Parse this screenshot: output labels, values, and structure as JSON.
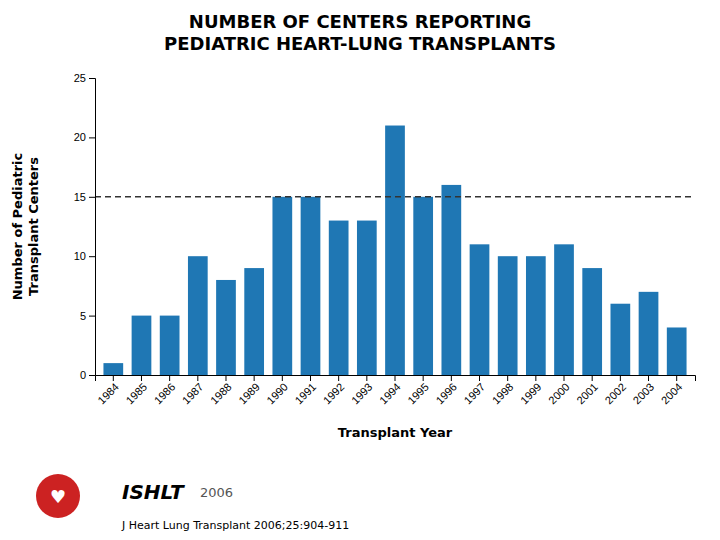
{
  "chart_data": {
    "type": "bar",
    "title": "NUMBER OF CENTERS REPORTING\nPEDIATRIC HEART-LUNG TRANSPLANTS",
    "categories": [
      "1984",
      "1985",
      "1986",
      "1987",
      "1988",
      "1989",
      "1990",
      "1991",
      "1992",
      "1993",
      "1994",
      "1995",
      "1996",
      "1997",
      "1998",
      "1999",
      "2000",
      "2001",
      "2002",
      "2003",
      "2004"
    ],
    "values": [
      1,
      5,
      5,
      10,
      8,
      9,
      15,
      15,
      13,
      13,
      21,
      15,
      16,
      11,
      10,
      10,
      11,
      9,
      6,
      7,
      4
    ],
    "xlabel": "Transplant Year",
    "ylabel": "Number of Pediatric\nTransplant Centers",
    "ylim": [
      0,
      25
    ],
    "yticks": [
      0,
      5,
      10,
      15,
      20,
      25
    ],
    "reference_line": 15,
    "grid": false,
    "annotations": [
      "♥",
      "ISHLT",
      "2006",
      "J Heart Lung Transplant 2006;25:904-911"
    ]
  }
}
